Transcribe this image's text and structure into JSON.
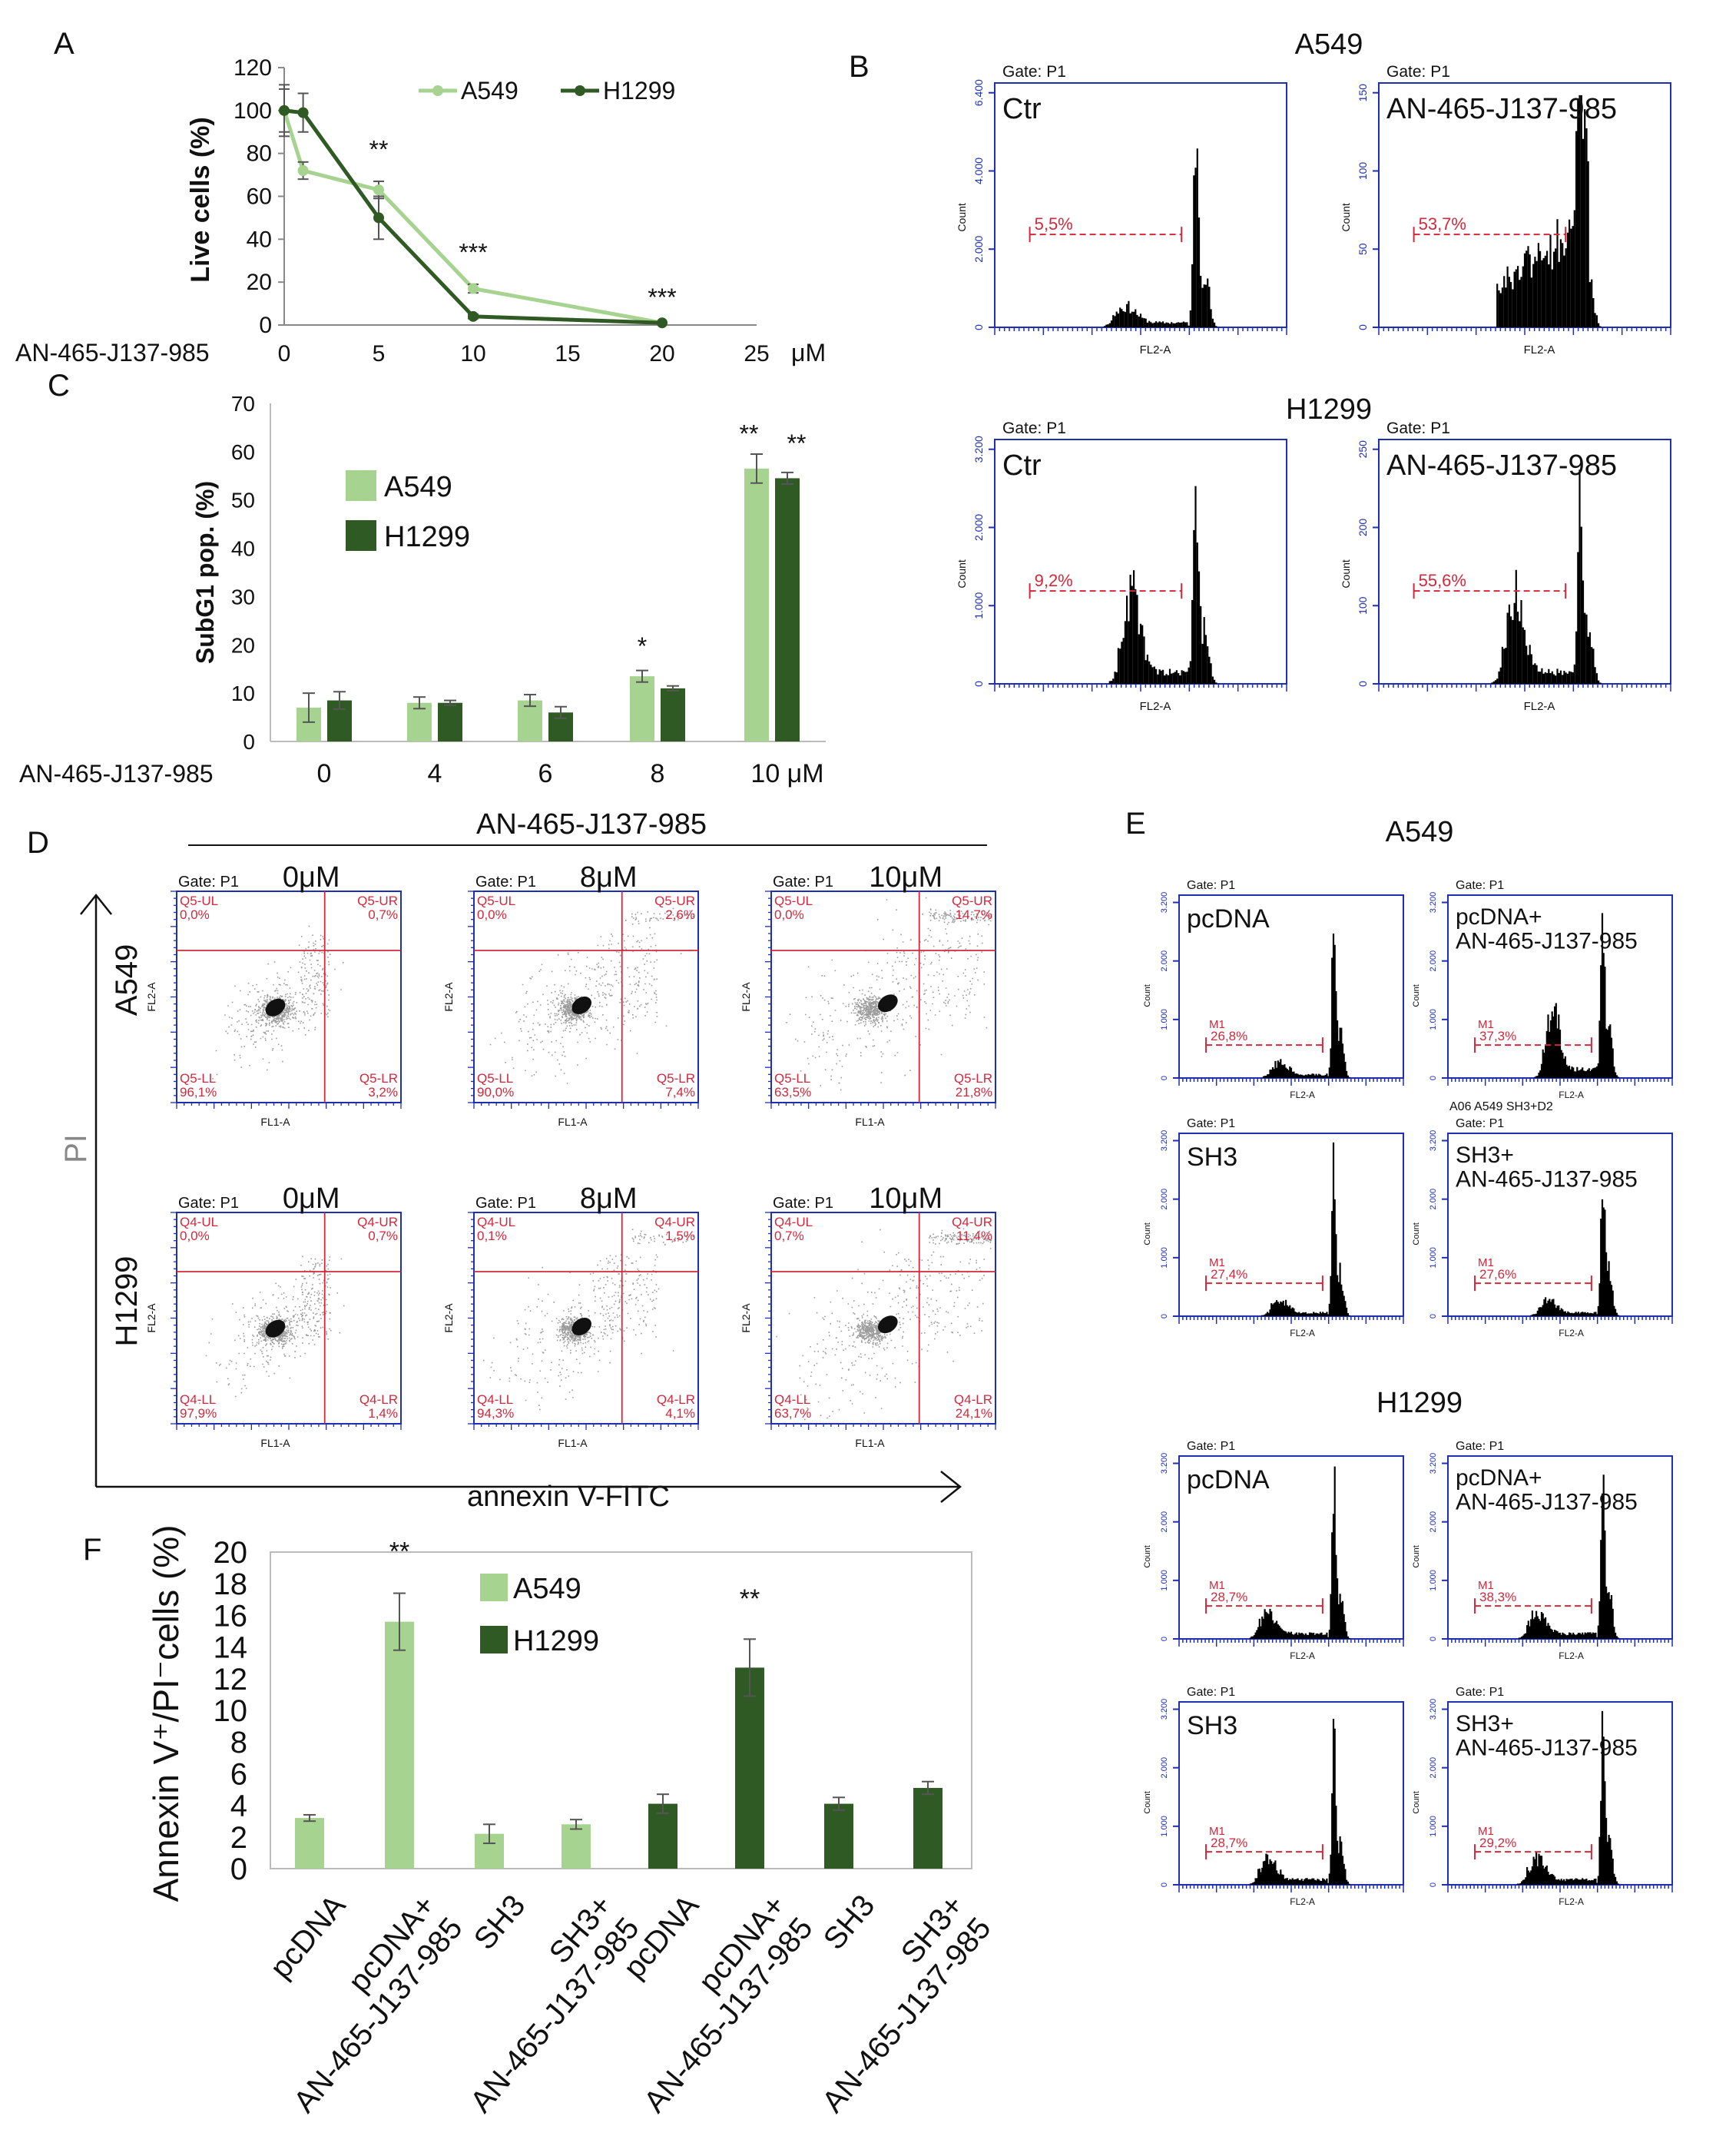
{
  "colors": {
    "a549": "#a6d38f",
    "h1299": "#2f5a24",
    "gate_red": "#d3283c",
    "axis_blue": "#1f2fb3"
  },
  "panel_labels": {
    "A": "A",
    "B": "B",
    "C": "C",
    "D": "D",
    "E": "E",
    "F": "F"
  },
  "gate_text": "Gate: P1",
  "count_label": "Count",
  "fl2_label": "FL2-A",
  "fl1_label": "FL1-A",
  "chart_data": [
    {
      "id": "A",
      "type": "line",
      "ylabel": "Live cells (%)",
      "xlabel": "AN-465-J137-985",
      "xunit": "μM",
      "x_ticks": [
        "0",
        "5",
        "10",
        "15",
        "20",
        "25"
      ],
      "y_ticks": [
        "0",
        "20",
        "40",
        "60",
        "80",
        "100",
        "120"
      ],
      "xlim": [
        0,
        25
      ],
      "ylim": [
        0,
        120
      ],
      "series": [
        {
          "name": "A549",
          "color": "#a6d38f",
          "x": [
            0,
            1,
            5,
            10,
            20
          ],
          "y": [
            100,
            72,
            63,
            17,
            1
          ],
          "err": [
            10,
            4,
            4,
            2,
            0
          ]
        },
        {
          "name": "H1299",
          "color": "#2f5a24",
          "x": [
            0,
            1,
            5,
            10,
            20
          ],
          "y": [
            100,
            99,
            50,
            4,
            1
          ],
          "err": [
            12,
            9,
            10,
            1,
            0
          ]
        }
      ],
      "annotations": [
        {
          "x": 5,
          "y": 78,
          "text": "**"
        },
        {
          "x": 10,
          "y": 30,
          "text": "***"
        },
        {
          "x": 20,
          "y": 9,
          "text": "***"
        }
      ]
    },
    {
      "id": "C",
      "type": "bar",
      "ylabel": "SubG1 pop. (%)",
      "xlabel": "AN-465-J137-985",
      "categories": [
        "0",
        "4",
        "6",
        "8",
        "10 μM"
      ],
      "ylim": [
        0,
        70
      ],
      "y_ticks": [
        "0",
        "10",
        "20",
        "30",
        "40",
        "50",
        "60",
        "70"
      ],
      "series": [
        {
          "name": "A549",
          "color": "#a6d38f",
          "values": [
            7,
            8,
            8.5,
            13.5,
            56.5
          ],
          "err": [
            3,
            1.2,
            1.2,
            1.2,
            3
          ]
        },
        {
          "name": "H1299",
          "color": "#2f5a24",
          "values": [
            8.5,
            8,
            6,
            11,
            54.5
          ],
          "err": [
            1.8,
            0.5,
            1.2,
            0.5,
            1.2
          ]
        }
      ],
      "annotations": [
        {
          "text": "*",
          "cat": 3,
          "s": 0,
          "y": 18
        },
        {
          "text": "**",
          "cat": 4,
          "s": 0,
          "y": 62
        },
        {
          "text": "**",
          "cat": 4,
          "s": 1,
          "y": 60
        }
      ]
    },
    {
      "id": "F",
      "type": "bar",
      "ylabel": "Annexin V⁺/PI⁻cells (%)",
      "categories": [
        "pcDNA",
        "pcDNA+\nAN-465-J137-985",
        "SH3",
        "SH3+\nAN-465-J137-985",
        "pcDNA",
        "pcDNA+\nAN-465-J137-985",
        "SH3",
        "SH3+\nAN-465-J137-985"
      ],
      "values": [
        3.2,
        15.6,
        2.2,
        2.8,
        4.1,
        12.7,
        4.1,
        5.1
      ],
      "err": [
        0.2,
        1.8,
        0.6,
        0.3,
        0.6,
        1.8,
        0.4,
        0.4
      ],
      "groups": [
        "A549",
        "A549",
        "A549",
        "A549",
        "H1299",
        "H1299",
        "H1299",
        "H1299"
      ],
      "ylim": [
        0,
        20
      ],
      "y_ticks": [
        "0",
        "2",
        "4",
        "6",
        "8",
        "10",
        "12",
        "14",
        "16",
        "18",
        "20"
      ],
      "legend": [
        "A549",
        "H1299"
      ],
      "annotations": [
        {
          "cat": 1,
          "text": "**",
          "y": 19.5
        },
        {
          "cat": 5,
          "text": "**",
          "y": 16.5
        }
      ]
    }
  ],
  "panel_b": {
    "rows": [
      {
        "cell_line": "A549",
        "panels": [
          {
            "label": "Ctr",
            "gate_pct": "5,5%",
            "y_ticks": [
              "0",
              "2.000",
              "4.000",
              "6.400"
            ]
          },
          {
            "label": "AN-465-J137-985",
            "gate_pct": "53,7%",
            "y_ticks": [
              "0",
              "50",
              "100",
              "150"
            ]
          }
        ]
      },
      {
        "cell_line": "H1299",
        "panels": [
          {
            "label": "Ctr",
            "gate_pct": "9,2%",
            "y_ticks": [
              "0",
              "1.000",
              "2.000",
              "3.200"
            ]
          },
          {
            "label": "AN-465-J137-985",
            "gate_pct": "55,6%",
            "y_ticks": [
              "0",
              "100",
              "200",
              "250"
            ]
          }
        ]
      }
    ]
  },
  "panel_d": {
    "title": "AN-465-J137-985",
    "x_axis": "annexin V-FITC",
    "y_axis": "PI",
    "rows": [
      {
        "cell_line": "A549",
        "prefix": "Q5",
        "panels": [
          {
            "dose": "0μM",
            "ul": "0,0%",
            "ur": "0,7%",
            "ll": "96,1%",
            "lr": "3,2%"
          },
          {
            "dose": "8μM",
            "ul": "0,0%",
            "ur": "2,6%",
            "ll": "90,0%",
            "lr": "7,4%"
          },
          {
            "dose": "10μM",
            "ul": "0,0%",
            "ur": "14,7%",
            "ll": "63,5%",
            "lr": "21,8%"
          }
        ]
      },
      {
        "cell_line": "H1299",
        "prefix": "Q4",
        "panels": [
          {
            "dose": "0μM",
            "ul": "0,0%",
            "ur": "0,7%",
            "ll": "97,9%",
            "lr": "1,4%"
          },
          {
            "dose": "8μM",
            "ul": "0,1%",
            "ur": "1,5%",
            "ll": "94,3%",
            "lr": "4,1%"
          },
          {
            "dose": "10μM",
            "ul": "0,7%",
            "ur": "11,4%",
            "ll": "63,7%",
            "lr": "24,1%"
          }
        ]
      }
    ]
  },
  "panel_e": {
    "groups": [
      {
        "cell_line": "A549",
        "panels": [
          {
            "label": "pcDNA",
            "gate_pct": "26,8%"
          },
          {
            "label": "pcDNA+\nAN-465-J137-985",
            "gate_pct": "37,3%"
          },
          {
            "label": "SH3",
            "gate_pct": "27,4%"
          },
          {
            "label": "SH3+\nAN-465-J137-985",
            "gate_pct": "27,6%",
            "extra": "A06 A549 SH3+D2"
          }
        ]
      },
      {
        "cell_line": "H1299",
        "panels": [
          {
            "label": "pcDNA",
            "gate_pct": "28,7%"
          },
          {
            "label": "pcDNA+\nAN-465-J137-985",
            "gate_pct": "38,3%"
          },
          {
            "label": "SH3",
            "gate_pct": "28,7%"
          },
          {
            "label": "SH3+\nAN-465-J137-985",
            "gate_pct": "29,2%"
          }
        ]
      }
    ],
    "gate_name": "M1"
  }
}
